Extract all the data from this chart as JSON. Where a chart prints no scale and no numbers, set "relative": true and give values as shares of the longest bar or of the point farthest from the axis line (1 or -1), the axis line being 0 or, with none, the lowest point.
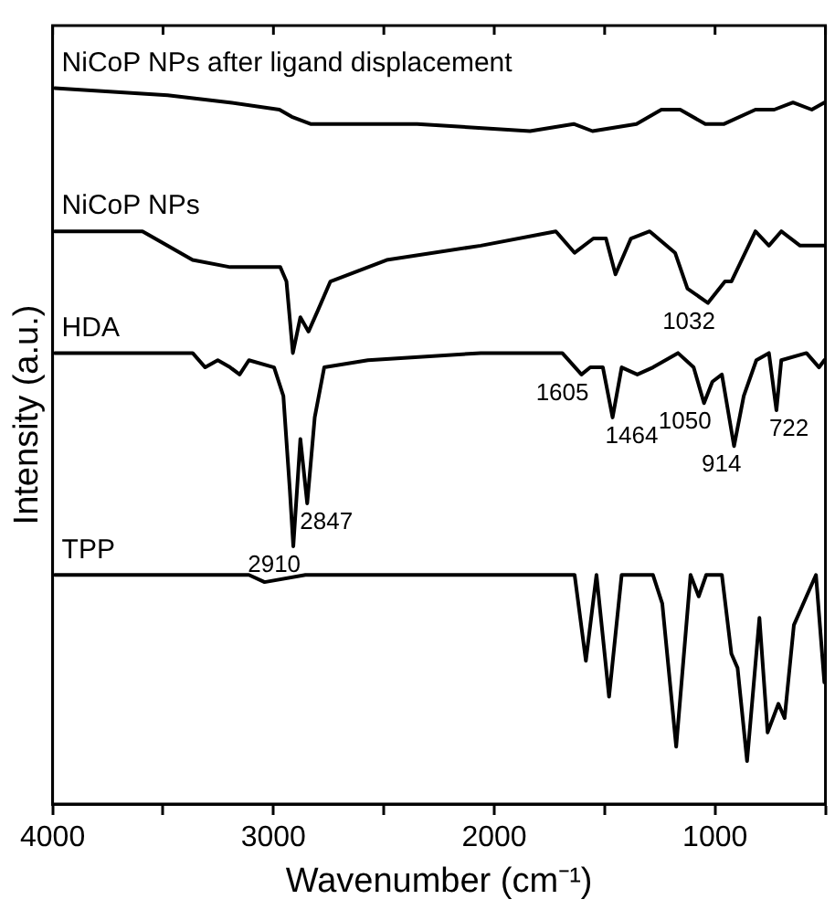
{
  "chart_data": {
    "type": "line",
    "relative": true,
    "xlabel": "Wavenumber (cm⁻¹)",
    "ylabel": "Intensity (a.u.)",
    "xlim": [
      4000,
      500
    ],
    "xticks": [
      4000,
      {
        "value": 3500,
        "label": null
      },
      3000,
      {
        "value": 2500,
        "label": null
      },
      2000,
      {
        "value": 1500,
        "label": null
      },
      1000,
      {
        "value": 500,
        "label": null
      }
    ],
    "grid": false,
    "marker": "none",
    "line_style": "solid",
    "series": [
      {
        "name": "NiCoP NPs after ligand displacement",
        "color": "#000000",
        "x": [
          3990,
          3479,
          3196,
          2973,
          2917,
          2832,
          2349,
          1838,
          1640,
          1555,
          1356,
          1243,
          1158,
          1044,
          959,
          817,
          732,
          647,
          562,
          505
        ],
        "values": [
          1.0,
          0.99,
          0.98,
          0.97,
          0.96,
          0.95,
          0.95,
          0.94,
          0.95,
          0.94,
          0.95,
          0.97,
          0.97,
          0.95,
          0.95,
          0.97,
          0.97,
          0.98,
          0.97,
          0.98
        ]
      },
      {
        "name": "NiCoP NPs",
        "color": "#000000",
        "x": [
          3990,
          3593,
          3366,
          3196,
          2969,
          2941,
          2912,
          2878,
          2841,
          2798,
          2742,
          2487,
          2061,
          1721,
          1636,
          1551,
          1494,
          1451,
          1381,
          1296,
          1181,
          1125,
          1032,
          955,
          926,
          817,
          756,
          700,
          615,
          505
        ],
        "values": [
          0.8,
          0.8,
          0.76,
          0.75,
          0.75,
          0.73,
          0.63,
          0.68,
          0.66,
          0.69,
          0.73,
          0.76,
          0.78,
          0.8,
          0.77,
          0.79,
          0.79,
          0.74,
          0.79,
          0.8,
          0.77,
          0.72,
          0.7,
          0.73,
          0.73,
          0.8,
          0.78,
          0.8,
          0.78,
          0.78
        ]
      },
      {
        "name": "HDA",
        "color": "#000000",
        "x": [
          3990,
          3366,
          3309,
          3252,
          3196,
          3153,
          3111,
          2997,
          2955,
          2926,
          2910,
          2878,
          2847,
          2813,
          2770,
          2572,
          2061,
          1692,
          1605,
          1565,
          1508,
          1464,
          1423,
          1352,
          1281,
          1168,
          1097,
          1050,
          1012,
          969,
          914,
          870,
          813,
          756,
          722,
          700,
          586,
          529,
          505
        ],
        "values": [
          0.63,
          0.63,
          0.61,
          0.62,
          0.61,
          0.6,
          0.62,
          0.61,
          0.57,
          0.44,
          0.36,
          0.51,
          0.42,
          0.54,
          0.61,
          0.62,
          0.63,
          0.63,
          0.6,
          0.61,
          0.61,
          0.54,
          0.61,
          0.6,
          0.61,
          0.63,
          0.61,
          0.56,
          0.59,
          0.6,
          0.5,
          0.57,
          0.62,
          0.63,
          0.55,
          0.62,
          0.63,
          0.61,
          0.62
        ]
      },
      {
        "name": "TPP",
        "color": "#000000",
        "x": [
          3990,
          3111,
          3040,
          2855,
          2061,
          1947,
          1636,
          1585,
          1537,
          1480,
          1423,
          1281,
          1239,
          1176,
          1111,
          1074,
          1040,
          969,
          926,
          898,
          855,
          799,
          762,
          713,
          685,
          643,
          586,
          543,
          505
        ],
        "values": [
          0.32,
          0.32,
          0.31,
          0.32,
          0.32,
          0.32,
          0.32,
          0.2,
          0.32,
          0.15,
          0.32,
          0.32,
          0.28,
          0.08,
          0.32,
          0.29,
          0.32,
          0.32,
          0.21,
          0.19,
          0.06,
          0.26,
          0.1,
          0.14,
          0.12,
          0.25,
          0.29,
          0.32,
          0.17
        ]
      }
    ],
    "annotations": [
      {
        "text": "1032",
        "x": 1032,
        "y": 0.7
      },
      {
        "text": "2910",
        "x": 2910,
        "y": 0.36
      },
      {
        "text": "2847",
        "x": 2847,
        "y": 0.42
      },
      {
        "text": "1605",
        "x": 1605,
        "y": 0.6
      },
      {
        "text": "1464",
        "x": 1464,
        "y": 0.54
      },
      {
        "text": "1050",
        "x": 1050,
        "y": 0.56
      },
      {
        "text": "914",
        "x": 914,
        "y": 0.5
      },
      {
        "text": "722",
        "x": 722,
        "y": 0.55
      }
    ]
  }
}
